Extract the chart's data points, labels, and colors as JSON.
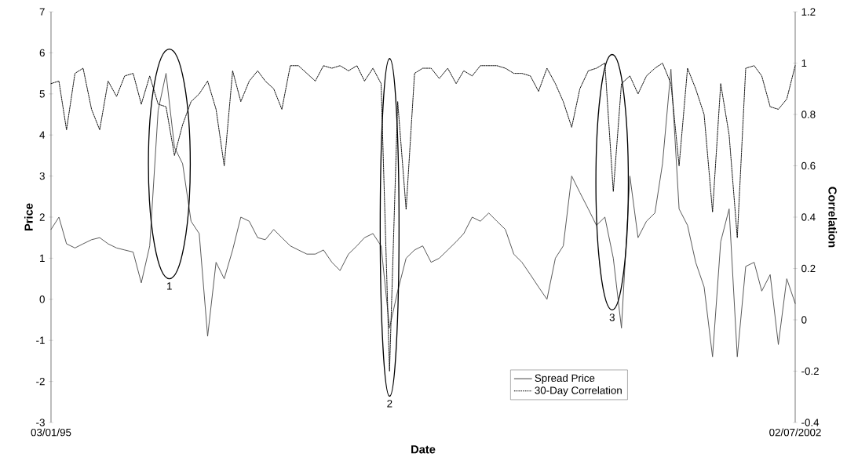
{
  "chart_data": {
    "type": "line",
    "xlabel": "Date",
    "ylabel": "Price",
    "y2label": "Correlation",
    "x": [
      "1995-01-03",
      "1995-02",
      "1995-03",
      "1995-04",
      "1995-05",
      "1995-06",
      "1995-07",
      "1995-08",
      "1995-09",
      "1995-10",
      "1995-11",
      "1995-12",
      "1996-01",
      "1996-02",
      "1996-03",
      "1996-04",
      "1996-05",
      "1996-06",
      "1996-07",
      "1996-08",
      "1996-09",
      "1996-10",
      "1996-11",
      "1996-12",
      "1997-01",
      "1997-02",
      "1997-03",
      "1997-04",
      "1997-05",
      "1997-06",
      "1997-07",
      "1997-08",
      "1997-09",
      "1997-10",
      "1997-11",
      "1997-12",
      "1998-01",
      "1998-02",
      "1998-03",
      "1998-04",
      "1998-05",
      "1998-06",
      "1998-07",
      "1998-08",
      "1998-09",
      "1998-10",
      "1998-11",
      "1998-12",
      "1999-01",
      "1999-02",
      "1999-03",
      "1999-04",
      "1999-05",
      "1999-06",
      "1999-07",
      "1999-08",
      "1999-09",
      "1999-10",
      "1999-11",
      "1999-12",
      "2000-01",
      "2000-02",
      "2000-03",
      "2000-04",
      "2000-05",
      "2000-06",
      "2000-07",
      "2000-08",
      "2000-09",
      "2000-10",
      "2000-11",
      "2000-12",
      "2001-01",
      "2001-02",
      "2001-03",
      "2001-04",
      "2001-05",
      "2001-06",
      "2001-07",
      "2001-08",
      "2001-09",
      "2001-10",
      "2001-11",
      "2001-12",
      "2002-01",
      "2002-02",
      "2002-03",
      "2002-04",
      "2002-05",
      "2002-06",
      "2002-07-02"
    ],
    "series": [
      {
        "name": "Spread Price",
        "color": "#4d4d4d",
        "line_style": "solid",
        "values": [
          1.7,
          2.0,
          1.35,
          1.25,
          1.35,
          1.45,
          1.5,
          1.35,
          1.25,
          1.2,
          1.15,
          0.4,
          1.3,
          4.6,
          5.5,
          3.7,
          3.3,
          1.9,
          1.6,
          -0.9,
          0.9,
          0.5,
          1.2,
          2.0,
          1.9,
          1.5,
          1.45,
          1.7,
          1.5,
          1.3,
          1.2,
          1.1,
          1.1,
          1.2,
          0.9,
          0.7,
          1.1,
          1.3,
          1.5,
          1.6,
          1.3,
          -0.7,
          0.2,
          1.0,
          1.2,
          1.3,
          0.9,
          1.0,
          1.2,
          1.4,
          1.6,
          2.0,
          1.9,
          2.1,
          1.9,
          1.7,
          1.1,
          0.9,
          0.6,
          0.3,
          0.0,
          1.0,
          1.3,
          3.0,
          2.6,
          2.2,
          1.8,
          2.0,
          1.0,
          -0.7,
          3.0,
          1.5,
          1.9,
          2.1,
          3.3,
          5.6,
          2.2,
          1.8,
          0.9,
          0.3,
          -1.4,
          1.4,
          2.2,
          -1.4,
          0.8,
          0.9,
          0.2,
          0.6,
          -1.1,
          0.5,
          -0.1
        ]
      },
      {
        "name": "30-Day Correlation",
        "color": "#000000",
        "line_style": "dotted",
        "axis": "y2",
        "values": [
          0.92,
          0.93,
          0.74,
          0.96,
          0.98,
          0.82,
          0.74,
          0.93,
          0.87,
          0.95,
          0.96,
          0.84,
          0.95,
          0.84,
          0.83,
          0.64,
          0.76,
          0.85,
          0.88,
          0.93,
          0.82,
          0.6,
          0.97,
          0.85,
          0.93,
          0.97,
          0.93,
          0.9,
          0.82,
          0.99,
          0.99,
          0.96,
          0.93,
          0.99,
          0.98,
          0.99,
          0.97,
          0.99,
          0.93,
          0.98,
          0.92,
          -0.2,
          0.85,
          0.43,
          0.96,
          0.98,
          0.98,
          0.94,
          0.98,
          0.92,
          0.97,
          0.95,
          0.99,
          0.99,
          0.99,
          0.98,
          0.96,
          0.96,
          0.95,
          0.89,
          0.98,
          0.92,
          0.85,
          0.75,
          0.9,
          0.97,
          0.98,
          1.0,
          0.5,
          0.92,
          0.95,
          0.88,
          0.95,
          0.98,
          1.0,
          0.92,
          0.6,
          0.98,
          0.9,
          0.8,
          0.42,
          0.92,
          0.72,
          0.32,
          0.98,
          0.99,
          0.95,
          0.83,
          0.82,
          0.86,
          0.99
        ]
      }
    ],
    "xlim": [
      "1995-01-03",
      "2002-07-02"
    ],
    "xticks": [
      {
        "value": "1995-01-03",
        "label": "03/01/95"
      },
      {
        "value": "2002-07-02",
        "label": "02/07/2002"
      }
    ],
    "ylim": [
      -3,
      7
    ],
    "yticks": [
      -3,
      -2,
      -1,
      0,
      1,
      2,
      3,
      4,
      5,
      6,
      7
    ],
    "y2lim": [
      -0.4,
      1.2
    ],
    "y2ticks": [
      -0.4,
      -0.2,
      0,
      0.2,
      0.4,
      0.6,
      0.8,
      1,
      1.2
    ],
    "annotations": [
      "1",
      "2",
      "3"
    ],
    "legend": "bottom right",
    "grid": false
  }
}
